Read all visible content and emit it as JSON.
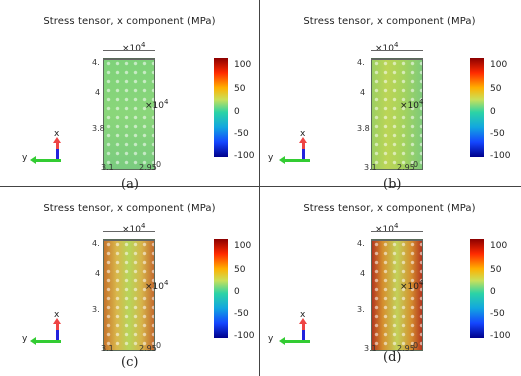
{
  "panels": [
    {
      "title": "Stress tensor, x component (MPa)",
      "caption": "(a)",
      "top_exp": "×10",
      "top_exp_sup": "4",
      "side_exp": "×10",
      "side_exp_sup": "4",
      "ticks_left": [
        "4.",
        "4",
        "3.8"
      ],
      "ticks_bottom": [
        "3.1",
        "2.95"
      ],
      "tick_zero": "0",
      "colorbar_labels": [
        "100",
        "50",
        "0",
        "-50",
        "-100"
      ],
      "axes": {
        "x": "x",
        "y": "y"
      }
    },
    {
      "title": "Stress tensor, x component (MPa)",
      "caption": "(b)",
      "top_exp": "×10",
      "top_exp_sup": "4",
      "side_exp": "×10",
      "side_exp_sup": "4",
      "ticks_left": [
        "4.",
        "4",
        "3.8"
      ],
      "ticks_bottom": [
        "3.1",
        "2.95"
      ],
      "tick_zero": "0",
      "colorbar_labels": [
        "100",
        "50",
        "0",
        "-50",
        "-100"
      ],
      "axes": {
        "x": "x",
        "y": "y"
      }
    },
    {
      "title": "Stress tensor, x component (MPa)",
      "caption": "(c)",
      "top_exp": "×10",
      "top_exp_sup": "4",
      "side_exp": "×10",
      "side_exp_sup": "4",
      "ticks_left": [
        "4.",
        "4",
        "3."
      ],
      "ticks_bottom": [
        "3.1",
        "2.95"
      ],
      "tick_zero": "0",
      "colorbar_labels": [
        "100",
        "50",
        "0",
        "-50",
        "-100"
      ],
      "axes": {
        "x": "x",
        "y": "y"
      }
    },
    {
      "title": "Stress tensor, x component (MPa)",
      "caption": "(d)",
      "top_exp": "×10",
      "top_exp_sup": "4",
      "side_exp": "×10",
      "side_exp_sup": "4",
      "ticks_left": [
        "4.",
        "4",
        "3."
      ],
      "ticks_bottom": [
        "3.1",
        "2.95"
      ],
      "tick_zero": "0",
      "colorbar_labels": [
        "100",
        "50",
        "0",
        "-50",
        "-100"
      ],
      "axes": {
        "x": "x",
        "y": "y"
      }
    }
  ],
  "colors": {
    "stress_low": "#00008b",
    "stress_mid": "#c9e05a",
    "stress_high": "#8b0000",
    "axis_y": "#33cc33",
    "axis_x": "#ee4444"
  }
}
